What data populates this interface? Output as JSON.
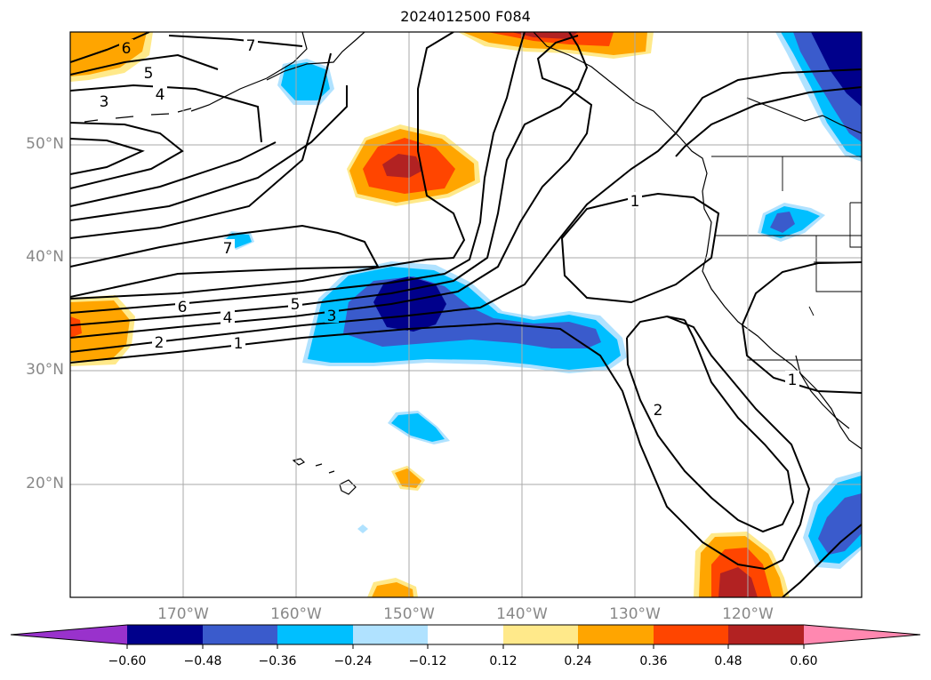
{
  "title": "2024012500 F084",
  "map": {
    "lat_labels": [
      "50°N",
      "40°N",
      "30°N",
      "20°N"
    ],
    "lon_labels": [
      "170°W",
      "160°W",
      "150°W",
      "140°W",
      "130°W",
      "120°W"
    ],
    "contour_labels": [
      "6",
      "7",
      "5",
      "4",
      "3",
      "7",
      "6",
      "4",
      "5",
      "3",
      "2",
      "1",
      "1",
      "2",
      "1"
    ]
  },
  "colorbar": {
    "colors": [
      "#9932cc",
      "#00008b",
      "#3a5bcc",
      "#00bfff",
      "#b0e2ff",
      "#ffffff",
      "#ffe98a",
      "#ffa500",
      "#ff4500",
      "#b22222",
      "#ff88b0"
    ],
    "ticks": [
      "−0.60",
      "−0.48",
      "−0.36",
      "−0.24",
      "−0.12",
      "0.12",
      "0.24",
      "0.36",
      "0.48",
      "0.60"
    ]
  },
  "field_colors": {
    "pos1": "#ffe98a",
    "pos2": "#ffa500",
    "pos3": "#ff4500",
    "pos4": "#b22222",
    "neg1": "#b0e2ff",
    "neg2": "#00bfff",
    "neg3": "#3a5bcc",
    "neg4": "#00008b"
  }
}
